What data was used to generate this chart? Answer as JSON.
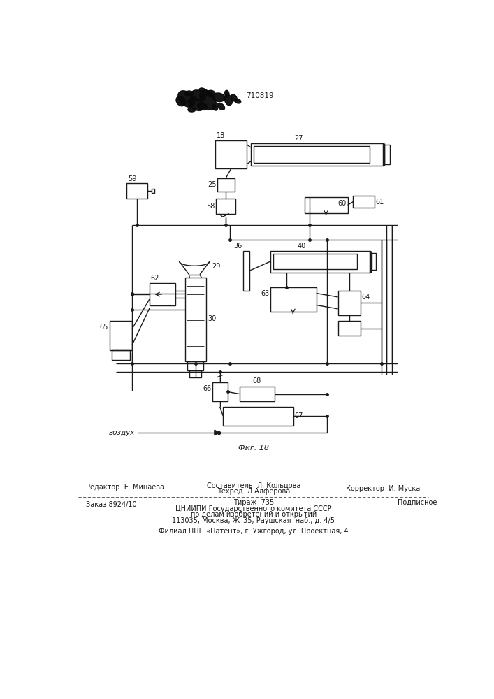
{
  "bg_color": "#ffffff",
  "line_color": "#1a1a1a",
  "text_color": "#1a1a1a",
  "fig_width": 7.07,
  "fig_height": 10.0,
  "title_stamp": "710819",
  "fig_label": "Фиг. 18",
  "vozdukh_label": "воздух",
  "footer": {
    "editor": "Редактор  Е. Минаева",
    "sostavitel": "Составитель  Л. Кольцова",
    "tekhred": "Техред  Л.Алферова",
    "korrektor": "Корректор  И. Муска",
    "zakaz": "Заказ 8924/10",
    "tirazh": "Тираж  735",
    "podpisnoe": "Подписное",
    "cniipи": "ЦНИИПИ Государственного комитета СССР",
    "po_delam": "по делам изобретений и открытий",
    "address": "113035, Москва, Ж–35, Раушская  наб., д. 4/5",
    "filial": "Филиал ППП «Патент», г. Ужгород, ул. Проектная, 4"
  }
}
